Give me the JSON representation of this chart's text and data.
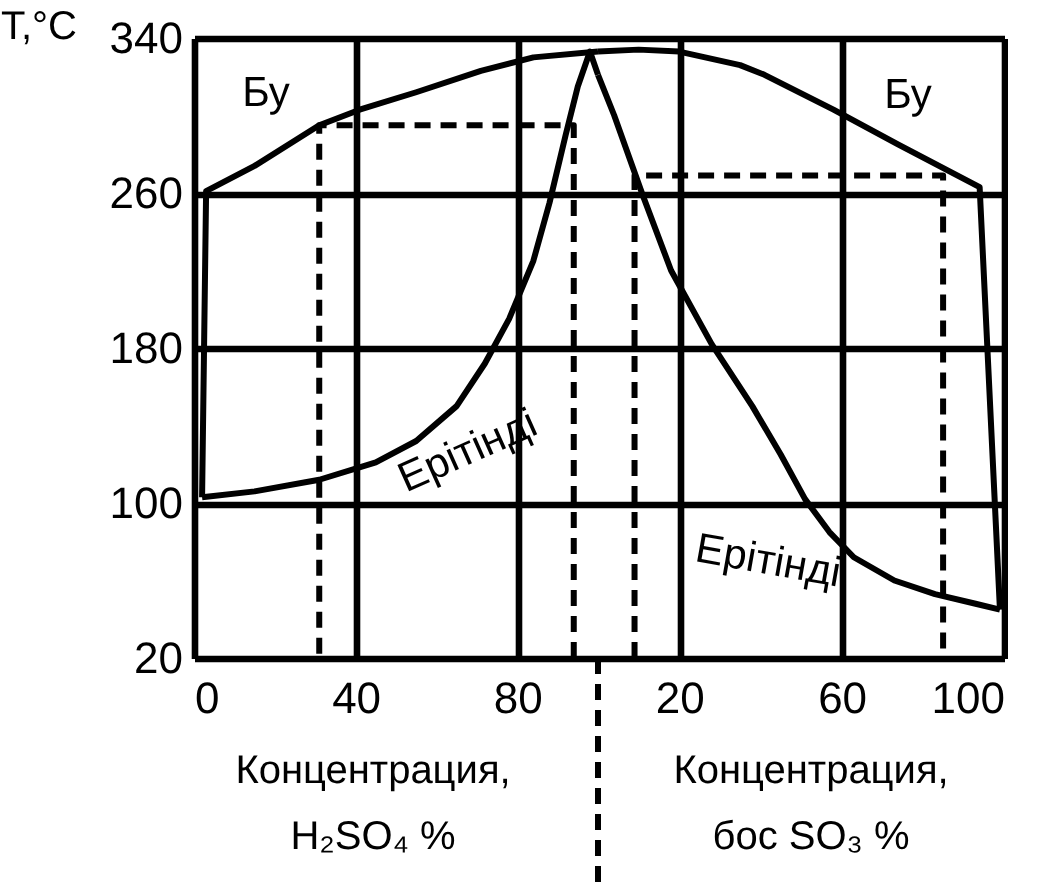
{
  "chart_data": [
    {
      "type": "line",
      "xlabel": "Концентрация, H₂SO₄ %",
      "ylabel": "T,°C",
      "xlim": [
        0,
        100
      ],
      "xticks": [
        0,
        40,
        80
      ],
      "ylim": [
        20,
        340
      ],
      "yticks": [
        20,
        100,
        180,
        260,
        340
      ],
      "grid": true,
      "series": [
        {
          "color": "#000000",
          "x": [
            2,
            3,
            15,
            31,
            41,
            55,
            71,
            84,
            100
          ],
          "values": [
            103,
            261,
            274,
            295,
            303,
            312,
            323,
            330,
            333
          ]
        },
        {
          "color": "#000000",
          "x": [
            2,
            15,
            31,
            45,
            55,
            65,
            72,
            78,
            84,
            88,
            92,
            95,
            98,
            100
          ],
          "values": [
            103,
            106,
            112,
            121,
            132,
            150,
            172,
            195,
            225,
            255,
            290,
            315,
            333,
            321
          ]
        },
        {
          "color": "#000000",
          "line_style": "dashed",
          "x": [
            94,
            94,
            31,
            31
          ],
          "values": [
            20,
            295,
            295,
            20
          ]
        }
      ],
      "annotations": [
        "Бу",
        "Ерітінді"
      ]
    },
    {
      "type": "line",
      "xlabel": "Концентрация, бос SO₃ %",
      "xlim": [
        0,
        100
      ],
      "xticks": [
        20,
        60,
        100
      ],
      "ylim": [
        20,
        340
      ],
      "yticks": [
        20,
        100,
        180,
        260,
        340
      ],
      "grid": true,
      "tick_labels": "x",
      "series": [
        {
          "color": "#000000",
          "x": [
            0,
            10,
            20,
            35,
            41,
            58,
            74,
            94,
            99
          ],
          "values": [
            333,
            334,
            333,
            326,
            321,
            303,
            285,
            263,
            45
          ]
        },
        {
          "color": "#000000",
          "x": [
            0,
            4,
            11,
            18,
            28,
            38,
            45,
            51,
            57,
            63,
            73,
            83,
            93,
            99
          ],
          "values": [
            321,
            300,
            259,
            220,
            182,
            150,
            125,
            102,
            85,
            72,
            60,
            53,
            48,
            45
          ]
        },
        {
          "color": "#000000",
          "line_style": "dashed",
          "x": [
            9,
            9,
            85,
            85
          ],
          "values": [
            20,
            269,
            269,
            20
          ]
        }
      ],
      "annotations": [
        "Бу",
        "Ерітінді"
      ]
    }
  ]
}
